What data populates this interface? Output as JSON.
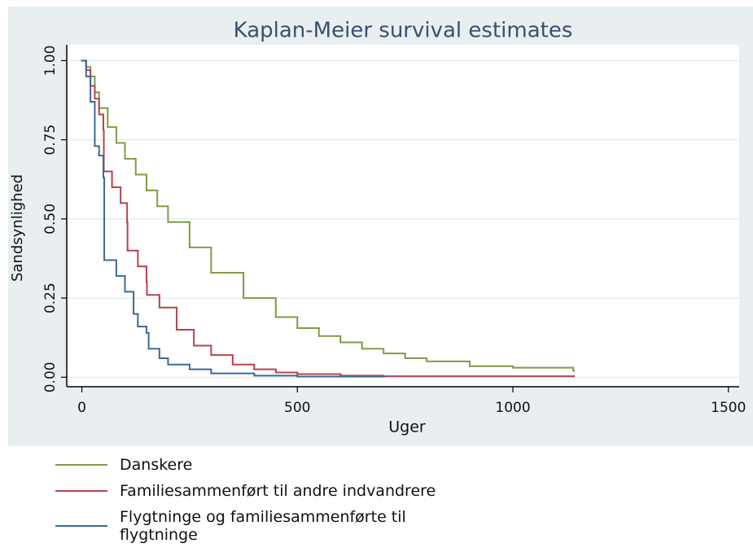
{
  "chart_data": {
    "type": "step",
    "title": "Kaplan-Meier survival estimates",
    "x_label": "Uger",
    "y_label": "Sandsynlighed",
    "xlim": [
      -35,
      1525
    ],
    "ylim": [
      -0.03,
      1.05
    ],
    "xticks": [
      0,
      500,
      1000,
      1500
    ],
    "yticks": [
      {
        "value": 0,
        "label": "0.00"
      },
      {
        "value": 0.25,
        "label": "0.25"
      },
      {
        "value": 0.5,
        "label": "0.50"
      },
      {
        "value": 0.75,
        "label": "0.75"
      },
      {
        "value": 1,
        "label": "1.00"
      }
    ],
    "grid": true,
    "series": [
      {
        "name": "Danskere",
        "color": "#7f9c45",
        "x": [
          0,
          10,
          20,
          30,
          40,
          60,
          80,
          100,
          125,
          150,
          175,
          200,
          250,
          300,
          375,
          450,
          500,
          550,
          600,
          650,
          700,
          750,
          800,
          900,
          1000,
          1140
        ],
        "values": [
          1,
          0.98,
          0.95,
          0.9,
          0.85,
          0.79,
          0.74,
          0.69,
          0.64,
          0.59,
          0.54,
          0.49,
          0.41,
          0.33,
          0.25,
          0.19,
          0.155,
          0.13,
          0.11,
          0.09,
          0.075,
          0.06,
          0.05,
          0.035,
          0.03,
          0.02
        ]
      },
      {
        "name": "Familiesammenført til andre indvandrere",
        "color": "#b5434f",
        "x": [
          0,
          10,
          20,
          30,
          40,
          50,
          51,
          70,
          90,
          105,
          106,
          130,
          150,
          151,
          180,
          220,
          260,
          300,
          350,
          400,
          450,
          500,
          600,
          700,
          1140
        ],
        "values": [
          1,
          0.97,
          0.92,
          0.88,
          0.83,
          0.78,
          0.65,
          0.6,
          0.55,
          0.49,
          0.4,
          0.35,
          0.3,
          0.26,
          0.22,
          0.15,
          0.1,
          0.07,
          0.04,
          0.025,
          0.015,
          0.01,
          0.005,
          0.003,
          0.003
        ]
      },
      {
        "name": "Flygtninge og familiesammenførte til flygtninge",
        "color": "#3d6a97",
        "x": [
          0,
          10,
          20,
          30,
          40,
          50,
          52,
          80,
          100,
          120,
          130,
          150,
          155,
          180,
          200,
          250,
          300,
          400,
          500,
          700
        ],
        "values": [
          1,
          0.95,
          0.87,
          0.73,
          0.7,
          0.63,
          0.37,
          0.32,
          0.27,
          0.2,
          0.16,
          0.14,
          0.09,
          0.06,
          0.04,
          0.025,
          0.012,
          0.005,
          0.002,
          0.002
        ]
      }
    ]
  }
}
